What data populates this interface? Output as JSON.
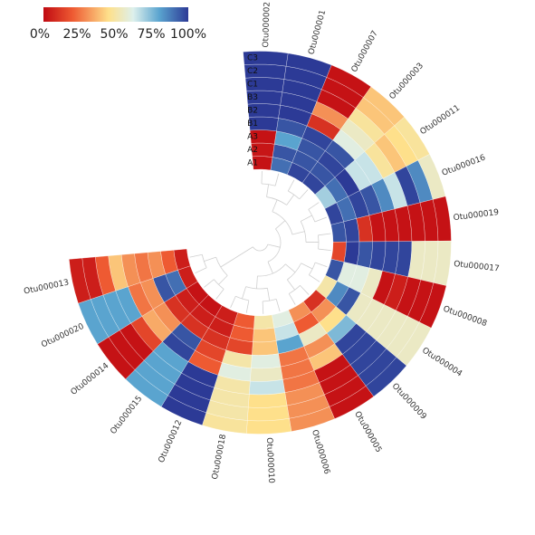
{
  "chart_data": {
    "type": "heatmap",
    "layout": "circular",
    "colormap": [
      "#c00a12",
      "#ee5a32",
      "#fee08b",
      "#ddf0ec",
      "#5aa4cf",
      "#2c3a96"
    ],
    "legend": {
      "placement": "top-left",
      "labels": [
        "0%",
        "25%",
        "50%",
        "75%",
        "100%"
      ]
    },
    "samples": [
      "A1",
      "A2",
      "A3",
      "B1",
      "B2",
      "B3",
      "C1",
      "C2",
      "C3"
    ],
    "otus": [
      "Otu000002",
      "Otu000001",
      "Otu000007",
      "Otu000003",
      "Otu000011",
      "Otu000016",
      "Otu000019",
      "Otu000017",
      "Otu000008",
      "Otu000004",
      "Otu000009",
      "Otu000005",
      "Otu000006",
      "Otu000010",
      "Otu000018",
      "Otu000012",
      "Otu000015",
      "Otu000014",
      "Otu000020",
      "Otu000013"
    ],
    "values": [
      [
        0.02,
        0.03,
        0.02,
        1.0,
        1.0,
        1.0,
        1.0,
        1.0,
        1.0
      ],
      [
        0.9,
        0.95,
        0.8,
        0.95,
        1.0,
        1.0,
        1.0,
        1.0,
        1.0
      ],
      [
        0.98,
        0.95,
        0.95,
        0.98,
        0.1,
        0.3,
        0.02,
        0.02,
        0.02
      ],
      [
        0.98,
        0.95,
        0.98,
        0.95,
        0.6,
        0.55,
        0.48,
        0.4,
        0.4
      ],
      [
        0.7,
        0.9,
        1.0,
        0.65,
        0.65,
        0.48,
        0.4,
        0.45,
        0.48
      ],
      [
        0.98,
        0.9,
        0.98,
        0.95,
        0.85,
        0.65,
        0.98,
        0.85,
        0.55
      ],
      [
        0.95,
        0.98,
        0.1,
        0.02,
        0.02,
        0.02,
        0.02,
        0.02,
        0.02
      ],
      [
        0.15,
        1.0,
        0.95,
        0.98,
        0.98,
        0.98,
        0.55,
        0.55,
        0.55
      ],
      [
        0.95,
        0.6,
        0.6,
        0.55,
        0.02,
        0.05,
        0.02,
        0.02,
        0.02
      ],
      [
        0.5,
        0.85,
        0.95,
        0.55,
        0.55,
        0.55,
        0.55,
        0.55,
        0.55
      ],
      [
        0.1,
        0.3,
        0.45,
        0.75,
        0.98,
        0.98,
        0.98,
        0.98,
        0.98
      ],
      [
        0.3,
        0.2,
        0.55,
        0.3,
        0.4,
        0.02,
        0.02,
        0.02,
        0.02
      ],
      [
        0.6,
        0.65,
        0.8,
        0.25,
        0.25,
        0.25,
        0.3,
        0.3,
        0.3
      ],
      [
        0.5,
        0.4,
        0.4,
        0.6,
        0.55,
        0.65,
        0.45,
        0.45,
        0.45
      ],
      [
        0.2,
        0.2,
        0.15,
        0.5,
        0.6,
        0.5,
        0.5,
        0.5,
        0.48
      ],
      [
        0.05,
        0.05,
        0.1,
        0.15,
        0.2,
        1.0,
        1.0,
        1.0,
        1.0
      ],
      [
        0.02,
        0.05,
        0.1,
        0.95,
        0.98,
        0.8,
        0.8,
        0.8,
        0.8
      ],
      [
        0.02,
        0.05,
        0.1,
        0.3,
        0.35,
        0.15,
        0.02,
        0.02,
        0.02
      ],
      [
        0.05,
        0.9,
        0.95,
        0.3,
        0.25,
        0.8,
        0.8,
        0.8,
        0.8
      ],
      [
        0.05,
        0.2,
        0.3,
        0.25,
        0.3,
        0.4,
        0.2,
        0.05,
        0.05
      ]
    ]
  }
}
